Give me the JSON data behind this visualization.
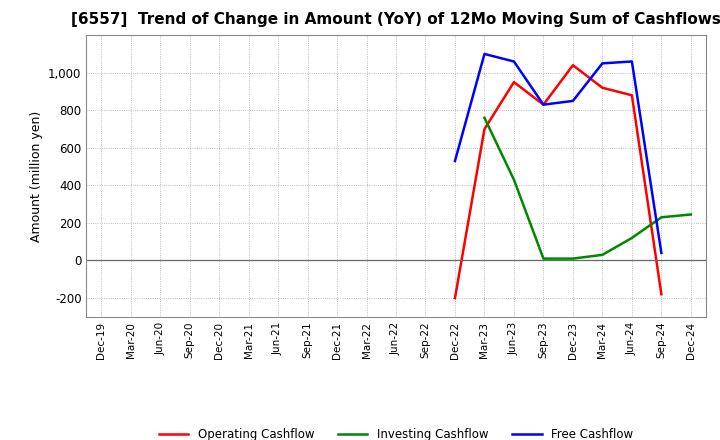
{
  "title": "[6557]  Trend of Change in Amount (YoY) of 12Mo Moving Sum of Cashflows",
  "ylabel": "Amount (million yen)",
  "background_color": "#ffffff",
  "grid_color": "#aaaaaa",
  "title_fontsize": 11,
  "tick_dates": [
    "Dec-19",
    "Mar-20",
    "Jun-20",
    "Sep-20",
    "Dec-20",
    "Mar-21",
    "Jun-21",
    "Sep-21",
    "Dec-21",
    "Mar-22",
    "Jun-22",
    "Sep-22",
    "Dec-22",
    "Mar-23",
    "Jun-23",
    "Sep-23",
    "Dec-23",
    "Mar-24",
    "Jun-24",
    "Sep-24",
    "Dec-24"
  ],
  "operating": [
    null,
    null,
    null,
    null,
    null,
    null,
    null,
    null,
    null,
    null,
    null,
    null,
    -200,
    700,
    950,
    830,
    1040,
    920,
    880,
    -180,
    null
  ],
  "investing": [
    null,
    null,
    null,
    null,
    null,
    null,
    null,
    null,
    null,
    null,
    null,
    null,
    null,
    760,
    430,
    10,
    10,
    30,
    120,
    230,
    245
  ],
  "free": [
    null,
    null,
    null,
    null,
    null,
    null,
    null,
    null,
    null,
    null,
    null,
    null,
    530,
    1100,
    1060,
    830,
    850,
    1050,
    1060,
    40,
    null
  ],
  "ylim": [
    -300,
    1200
  ],
  "yticks": [
    -200,
    0,
    200,
    400,
    600,
    800,
    1000
  ],
  "operating_color": "#ff0000",
  "investing_color": "#008800",
  "free_color": "#0000ff",
  "line_width": 1.8
}
